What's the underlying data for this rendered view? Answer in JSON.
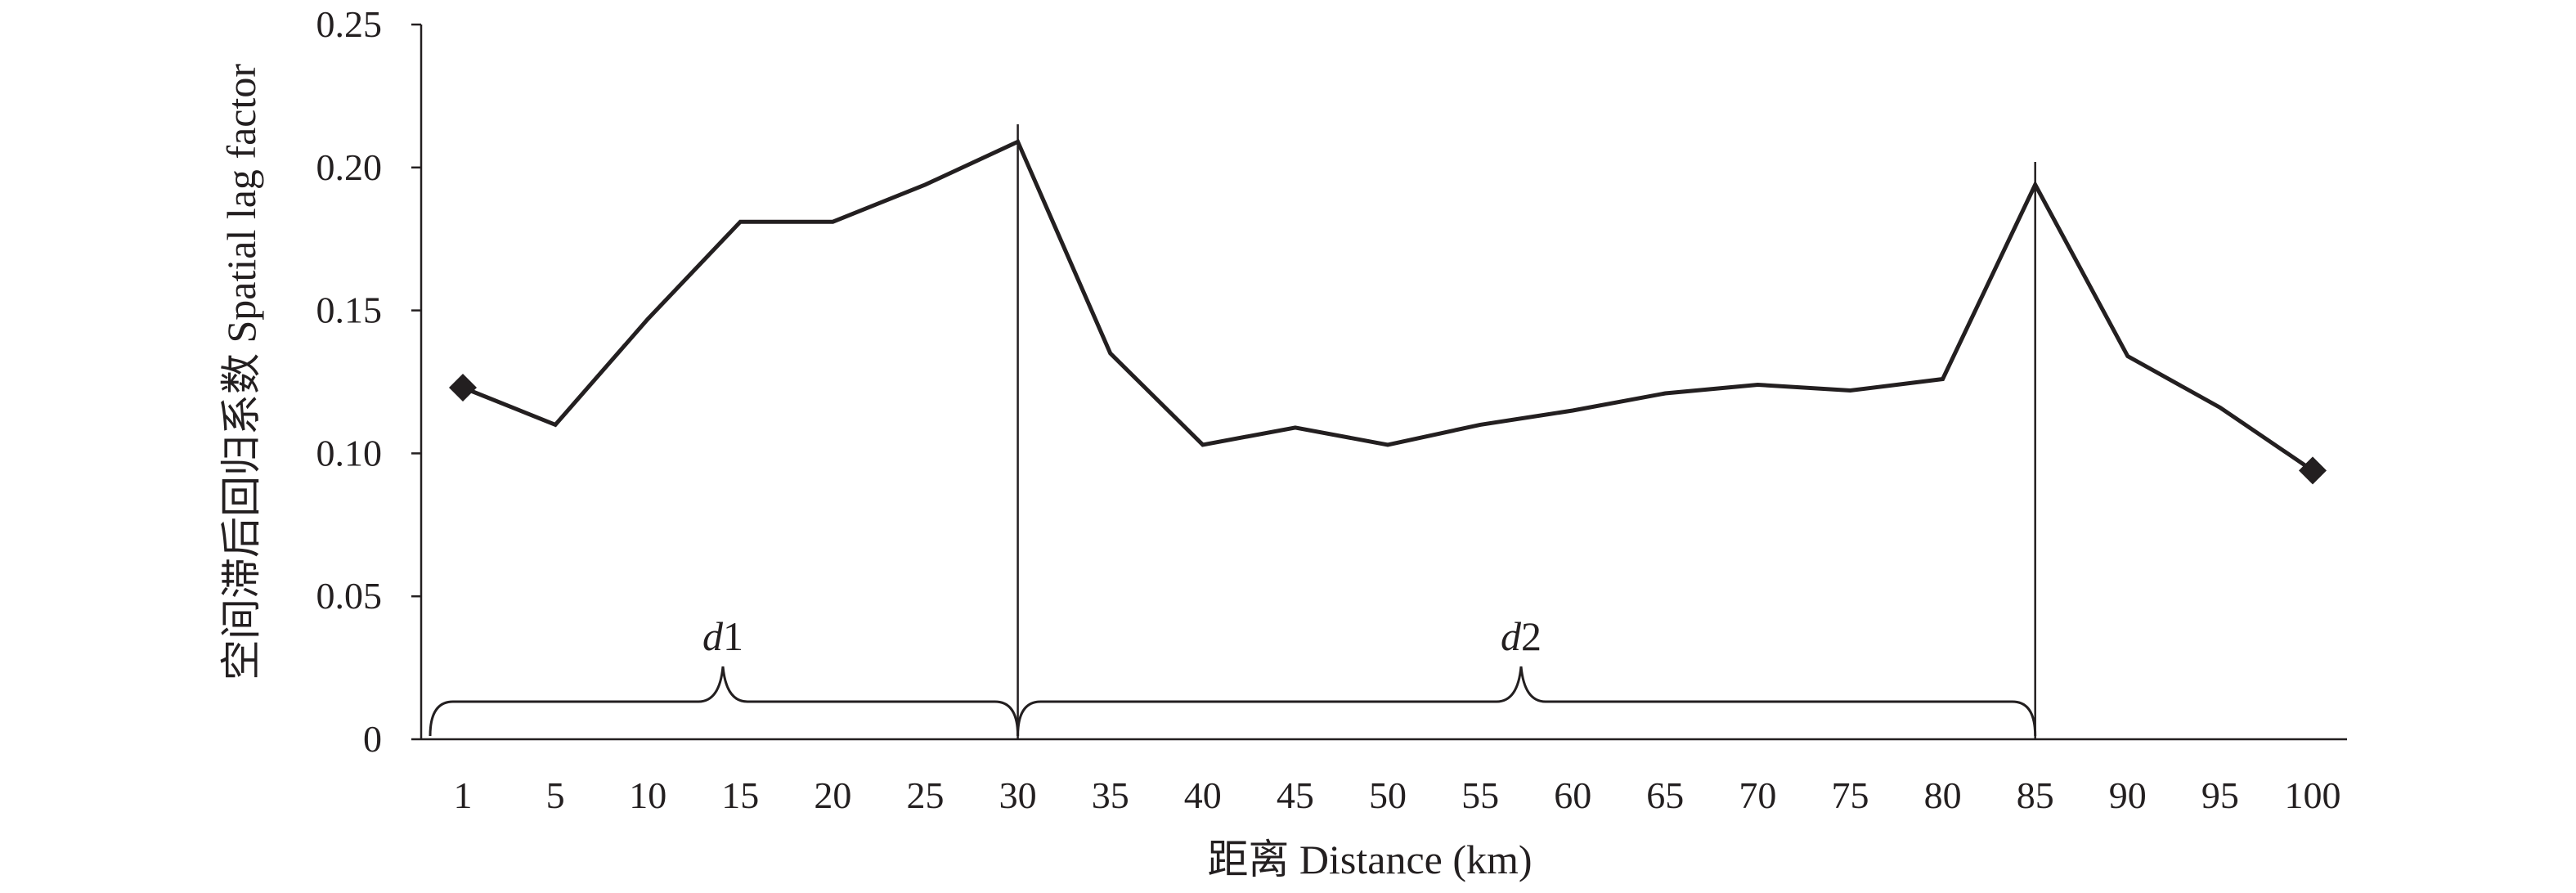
{
  "chart_data": {
    "type": "line",
    "xlabel": "距离 Distance (km)",
    "ylabel": "空间滞后回归系数 Spatial lag factor",
    "categories": [
      "1",
      "5",
      "10",
      "15",
      "20",
      "25",
      "30",
      "35",
      "40",
      "45",
      "50",
      "55",
      "60",
      "65",
      "70",
      "75",
      "80",
      "85",
      "90",
      "95",
      "100"
    ],
    "y_ticks": [
      "0",
      "0.05",
      "0.10",
      "0.15",
      "0.20",
      "0.25"
    ],
    "ylim": [
      0,
      0.25
    ],
    "series": [
      {
        "values": [
          0.123,
          0.11,
          0.147,
          0.181,
          0.181,
          0.194,
          0.209,
          0.135,
          0.103,
          0.109,
          0.103,
          0.11,
          0.115,
          0.121,
          0.124,
          0.122,
          0.126,
          0.194,
          0.134,
          0.116,
          0.094
        ]
      }
    ],
    "markers_at": [
      "1",
      "100"
    ],
    "vertical_lines_at": [
      "30",
      "85"
    ],
    "braces": [
      {
        "label_italic": "d",
        "label_num": "1",
        "from": "1",
        "to": "30"
      },
      {
        "label_italic": "d",
        "label_num": "2",
        "from": "30",
        "to": "85"
      }
    ],
    "grid": false
  }
}
